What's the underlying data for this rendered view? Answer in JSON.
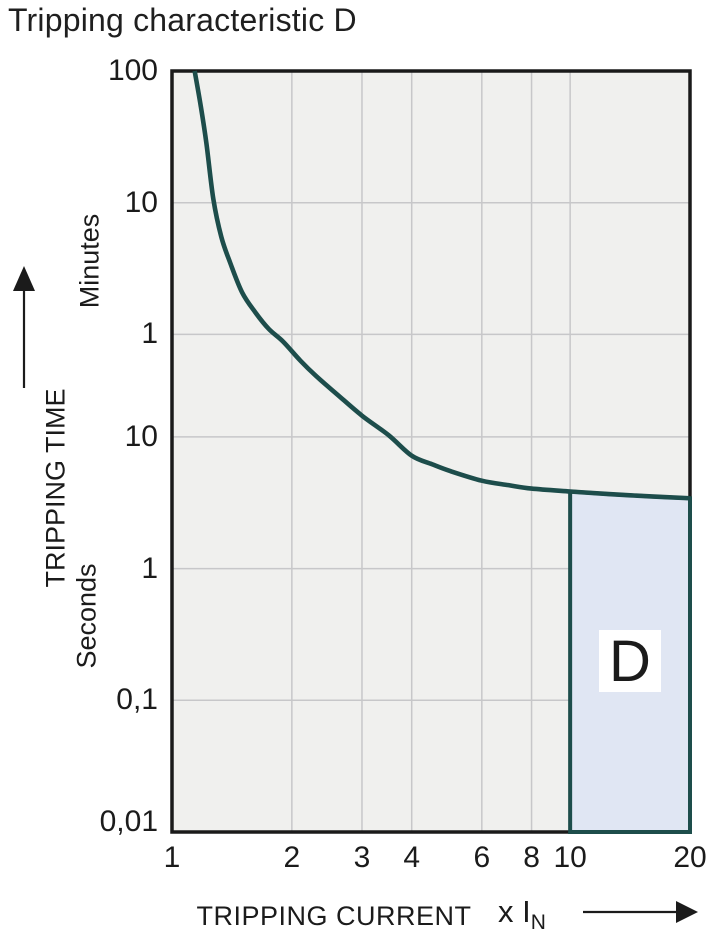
{
  "title": "Tripping characteristic D",
  "colors": {
    "curve": "#1d4d4b",
    "region_fill": "#e0e6f3",
    "region_border": "#1d4d4b",
    "plot_background": "#f0f0ee",
    "gridline": "#c7c7c9",
    "frame": "#1a1a1a",
    "text": "#1b1b1b",
    "region_label_background": "#ffffff"
  },
  "y_axis": {
    "label": "TRIPPING TIME",
    "unit_upper": "Minutes",
    "unit_lower": "Seconds"
  },
  "x_axis": {
    "label": "TRIPPING CURRENT",
    "unit": "x I",
    "unit_subscript": "N"
  },
  "region_label": "D",
  "chart_data": {
    "type": "line",
    "title": "Tripping characteristic D",
    "xlabel": "TRIPPING CURRENT x IN",
    "ylabel": "TRIPPING TIME",
    "x_scale": "log",
    "y_scale": "log",
    "xlim": [
      1,
      20
    ],
    "ylim_seconds": [
      0.01,
      6000
    ],
    "grid": true,
    "x_ticks": [
      {
        "value": 1,
        "label": "1"
      },
      {
        "value": 2,
        "label": "2"
      },
      {
        "value": 3,
        "label": "3"
      },
      {
        "value": 4,
        "label": "4"
      },
      {
        "value": 6,
        "label": "6"
      },
      {
        "value": 8,
        "label": "8"
      },
      {
        "value": 10,
        "label": "10"
      },
      {
        "value": 20,
        "label": "20"
      }
    ],
    "y_ticks": [
      {
        "seconds": 6000,
        "label": "100",
        "unit": "minutes"
      },
      {
        "seconds": 600,
        "label": "10",
        "unit": "minutes"
      },
      {
        "seconds": 60,
        "label": "1",
        "unit": "minutes"
      },
      {
        "seconds": 10,
        "label": "10",
        "unit": "seconds"
      },
      {
        "seconds": 1,
        "label": "1",
        "unit": "seconds"
      },
      {
        "seconds": 0.1,
        "label": "0,1",
        "unit": "seconds"
      },
      {
        "seconds": 0.01,
        "label": "0,01",
        "unit": "seconds"
      }
    ],
    "x_gridlines": [
      2,
      3,
      4,
      6,
      8,
      10
    ],
    "y_gridlines_seconds": [
      600,
      60,
      10,
      1,
      0.1
    ],
    "series": [
      {
        "name": "tripping-curve",
        "points_x_in_multiples": [
          1.14,
          1.18,
          1.22,
          1.27,
          1.33,
          1.4,
          1.5,
          1.62,
          1.75,
          1.9,
          2.1,
          2.3,
          2.6,
          3.0,
          3.5,
          4.0,
          4.5,
          5.0,
          6.0,
          7.0,
          8.0,
          10.0,
          12.5,
          16.0,
          20.0
        ],
        "points_time_seconds": [
          6000,
          3300,
          1700,
          640,
          330,
          210,
          125,
          88,
          66,
          53,
          38,
          29,
          21,
          14.5,
          10.3,
          7.2,
          6.2,
          5.5,
          4.65,
          4.3,
          4.05,
          3.85,
          3.68,
          3.53,
          3.42
        ]
      }
    ],
    "region": {
      "label": "D",
      "x_range": [
        10,
        20
      ],
      "bottom_seconds": 0.01,
      "top_boundary": "curve"
    }
  }
}
